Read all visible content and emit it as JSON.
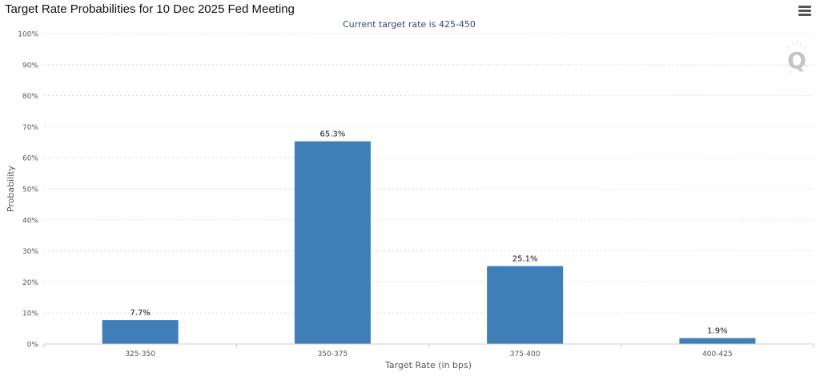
{
  "header": {
    "title": "Target Rate Probabilities for 10 Dec 2025 Fed Meeting",
    "menu_icon": "hamburger-menu-icon"
  },
  "watermark": {
    "glyph": "Q"
  },
  "chart_data": {
    "type": "bar",
    "title": "Target Rate Probabilities for 10 Dec 2025 Fed Meeting",
    "subtitle": "Current target rate is 425-450",
    "xlabel": "Target Rate (in bps)",
    "ylabel": "Probability",
    "categories": [
      "325-350",
      "350-375",
      "375-400",
      "400-425"
    ],
    "values": [
      7.7,
      65.3,
      25.1,
      1.9
    ],
    "data_labels": [
      "7.7%",
      "65.3%",
      "25.1%",
      "1.9%"
    ],
    "ylim": [
      0,
      100
    ],
    "yticks": [
      0,
      10,
      20,
      30,
      40,
      50,
      60,
      70,
      80,
      90,
      100
    ],
    "ytick_labels": [
      "0%",
      "10%",
      "20%",
      "30%",
      "40%",
      "50%",
      "60%",
      "70%",
      "80%",
      "90%",
      "100%"
    ],
    "grid": true,
    "legend": "none",
    "colors": {
      "bar": "#3f7eb6",
      "grid": "#d8d8d8",
      "subtitle": "#334477"
    }
  }
}
